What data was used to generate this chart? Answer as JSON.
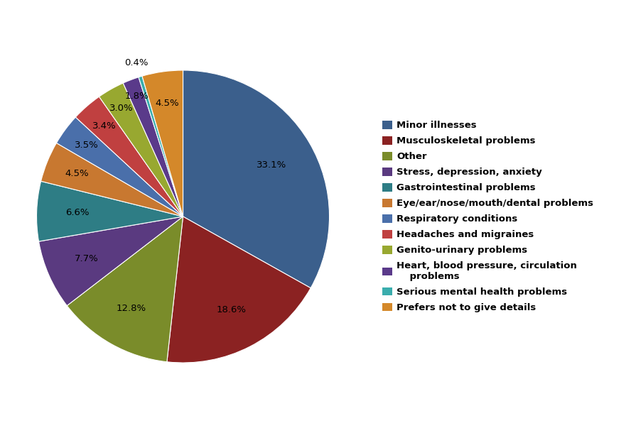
{
  "legend_labels": [
    "Minor illnesses",
    "Musculoskeletal problems",
    "Other",
    "Stress, depression, anxiety",
    "Gastrointestinal problems",
    "Eye/ear/nose/mouth/dental problems",
    "Respiratory conditions",
    "Headaches and migraines",
    "Genito-urinary problems",
    "Heart, blood pressure, circulation\n    problems",
    "Serious mental health problems",
    "Prefers not to give details"
  ],
  "values": [
    33.1,
    18.6,
    12.8,
    7.7,
    6.6,
    4.5,
    3.5,
    3.4,
    3.0,
    1.8,
    0.4,
    4.5
  ],
  "colors": [
    "#3B5F8C",
    "#8B2222",
    "#7A8C2A",
    "#5A3A80",
    "#2E7D85",
    "#C87830",
    "#4A6FAA",
    "#C04040",
    "#98A830",
    "#5A3A8A",
    "#3AADAD",
    "#D4882A"
  ],
  "pct_labels": [
    "33.1%",
    "18.6%",
    "12.8%",
    "7.7%",
    "6.6%",
    "4.5%",
    "3.5%",
    "3.4%",
    "3.0%",
    "1.8%",
    "0.4%",
    "4.5%"
  ],
  "label_distances": [
    0.7,
    0.72,
    0.72,
    0.72,
    0.72,
    0.78,
    0.82,
    0.82,
    0.85,
    0.88,
    1.1,
    0.78
  ],
  "background_color": "#FFFFFF",
  "figsize": [
    8.88,
    6.1
  ],
  "dpi": 100,
  "startangle": 90
}
